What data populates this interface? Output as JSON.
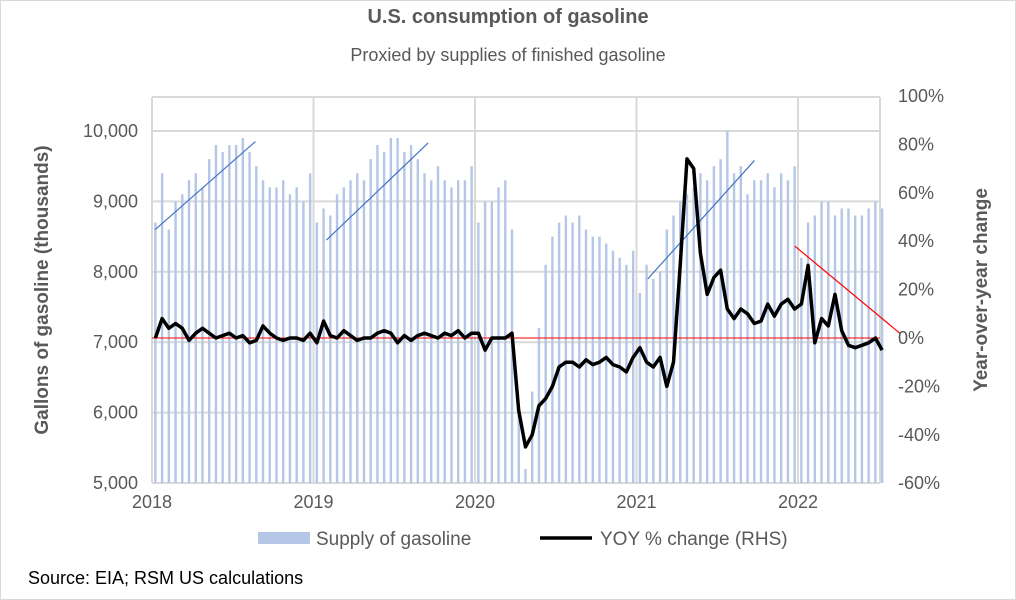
{
  "chart_data": {
    "type": "bar+line",
    "title": "U.S. consumption of gasoline",
    "subtitle": "Proxied by supplies of finished gasoline",
    "source": "Source: EIA; RSM US calculations",
    "ylabel": "Gallons of gasoline (thousands)",
    "y2label": "Year-over-year change",
    "ylim": [
      5000,
      10500
    ],
    "y2lim": [
      -60,
      100
    ],
    "xlim": [
      2018,
      2022.55
    ],
    "grid": true,
    "legend_position": "bottom",
    "x_ticks": [
      "2018",
      "2019",
      "2020",
      "2021",
      "2022"
    ],
    "y_ticks": [
      "5,000",
      "6,000",
      "7,000",
      "8,000",
      "9,000",
      "10,000"
    ],
    "y2_ticks": [
      "-60%",
      "-40%",
      "-20%",
      "0%",
      "20%",
      "40%",
      "60%",
      "80%",
      "100%"
    ],
    "series": [
      {
        "name": "Supply of gasoline",
        "type": "bar",
        "axis": "left",
        "color": "#b4c7e7",
        "start_year": 2018,
        "points_per_year": 24,
        "values": [
          8700,
          9400,
          8600,
          9000,
          9100,
          9300,
          9400,
          9200,
          9600,
          9800,
          9700,
          9800,
          9800,
          9900,
          9700,
          9500,
          9300,
          9200,
          9200,
          9300,
          9100,
          9200,
          9000,
          9400,
          8700,
          8900,
          8800,
          9100,
          9200,
          9300,
          9400,
          9300,
          9600,
          9800,
          9700,
          9900,
          9900,
          9700,
          9800,
          9600,
          9400,
          9300,
          9500,
          9300,
          9200,
          9300,
          9300,
          9500,
          8700,
          9000,
          9000,
          9200,
          9300,
          8600,
          6000,
          5200,
          6300,
          7200,
          8100,
          8500,
          8700,
          8800,
          8700,
          8800,
          8600,
          8500,
          8500,
          8400,
          8300,
          8200,
          8100,
          8300,
          7700,
          8100,
          7900,
          8000,
          8600,
          8800,
          9000,
          9100,
          9200,
          9400,
          9300,
          9500,
          9600,
          10000,
          9400,
          9500,
          9100,
          9300,
          9300,
          9400,
          9200,
          9400,
          9300,
          9500,
          8200,
          8700,
          8800,
          9000,
          9000,
          8800,
          8900,
          8900,
          8800,
          8800,
          8900,
          9000,
          8900
        ]
      },
      {
        "name": "YOY % change (RHS)",
        "type": "line",
        "axis": "right",
        "color": "#000000",
        "start_year": 2018,
        "points_per_year": 24,
        "values": [
          0,
          8,
          4,
          6,
          4,
          -1,
          2,
          4,
          2,
          0,
          1,
          2,
          0,
          1,
          -2,
          -1,
          5,
          2,
          0,
          -1,
          0,
          0,
          -1,
          2,
          -2,
          7,
          1,
          0,
          3,
          1,
          -1,
          0,
          0,
          2,
          3,
          2,
          -2,
          1,
          -1,
          1,
          2,
          1,
          0,
          2,
          1,
          3,
          0,
          2,
          2,
          -5,
          0,
          0,
          0,
          2,
          -30,
          -45,
          -40,
          -28,
          -25,
          -20,
          -12,
          -10,
          -10,
          -12,
          -9,
          -11,
          -10,
          -8,
          -11,
          -12,
          -14,
          -8,
          -4,
          -10,
          -12,
          -8,
          -20,
          -10,
          30,
          74,
          70,
          35,
          18,
          25,
          28,
          12,
          8,
          12,
          10,
          6,
          7,
          14,
          9,
          14,
          16,
          12,
          14,
          30,
          -2,
          8,
          5,
          18,
          3,
          -3,
          -4,
          -3,
          -2,
          0,
          -5
        ]
      }
    ],
    "annotations": [
      {
        "type": "trendline",
        "axis": "left",
        "color": "#4472c4",
        "from": [
          2018.02,
          8600
        ],
        "to": [
          2018.64,
          9850
        ]
      },
      {
        "type": "trendline",
        "axis": "left",
        "color": "#4472c4",
        "from": [
          2019.08,
          8450
        ],
        "to": [
          2019.71,
          9830
        ]
      },
      {
        "type": "trendline",
        "axis": "left",
        "color": "#4472c4",
        "from": [
          2021.07,
          7900
        ],
        "to": [
          2021.73,
          9580
        ]
      },
      {
        "type": "trendline",
        "axis": "right",
        "color": "#ff0000",
        "from": [
          2021.98,
          38
        ],
        "to": [
          2022.63,
          2
        ]
      },
      {
        "type": "hline",
        "axis": "right",
        "color": "#ff0000",
        "value": 0
      }
    ]
  }
}
